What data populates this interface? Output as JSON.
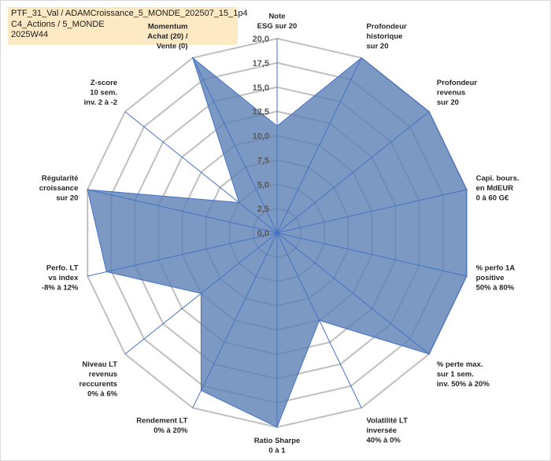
{
  "header": {
    "line1": "PTF_31_Val / ADAMCroissance_5_MONDE_202507_15_1p4",
    "line2": "C4_Actions / 5_MONDE",
    "line3": "2025W44"
  },
  "colors": {
    "fill": "#5b80b5",
    "fill_opacity": "0.8",
    "outline": "#4472c4",
    "grid": "#bfbfbf",
    "spoke": "#4472c4",
    "title_bg": "#fde9c3"
  },
  "chart_data": {
    "type": "radar",
    "title": "PTF_31_Val / ADAMCroissance_5_MONDE_202507_15_1p4",
    "rmin": 0,
    "rmax": 20,
    "ticks": [
      "0,0",
      "2,5",
      "5,0",
      "7,5",
      "10,0",
      "12,5",
      "15,0",
      "17,5",
      "20,0"
    ],
    "tick_values": [
      0,
      2.5,
      5,
      7.5,
      10,
      12.5,
      15,
      17.5,
      20
    ],
    "categories": [
      [
        "Note",
        "ESG sur 20"
      ],
      [
        "Profondeur",
        "historique",
        "sur 20"
      ],
      [
        "Profondeur",
        "revenus",
        "sur 20"
      ],
      [
        "Capi. bours.",
        "en MdEUR",
        "0 à 60 G€"
      ],
      [
        "% perfo 1A",
        "positive",
        "50% à 80%"
      ],
      [
        "% perte max.",
        "sur 1 sem.",
        "inv. 50% à 20%"
      ],
      [
        "Volatilité LT",
        "inversée",
        "40% à 0%"
      ],
      [
        "Ratio Sharpe",
        "0 à 1"
      ],
      [
        "Rendement LT",
        "0% à 20%"
      ],
      [
        "Niveau LT",
        "revenus",
        "reccurents",
        "0% à 6%"
      ],
      [
        "Perfo. LT",
        "vs index",
        "-8% à 12%"
      ],
      [
        "Régularité",
        "croissance",
        "sur 20"
      ],
      [
        "Z-score",
        "10 sem.",
        "inv. 2 à -2"
      ],
      [
        "Momentum",
        "Achat (20) /",
        "Vente (0)"
      ]
    ],
    "series": [
      {
        "name": "PTF_31_Val",
        "values": [
          11,
          20,
          20,
          20,
          20,
          20,
          10,
          20,
          18,
          10,
          18,
          20,
          5,
          20
        ]
      }
    ]
  }
}
